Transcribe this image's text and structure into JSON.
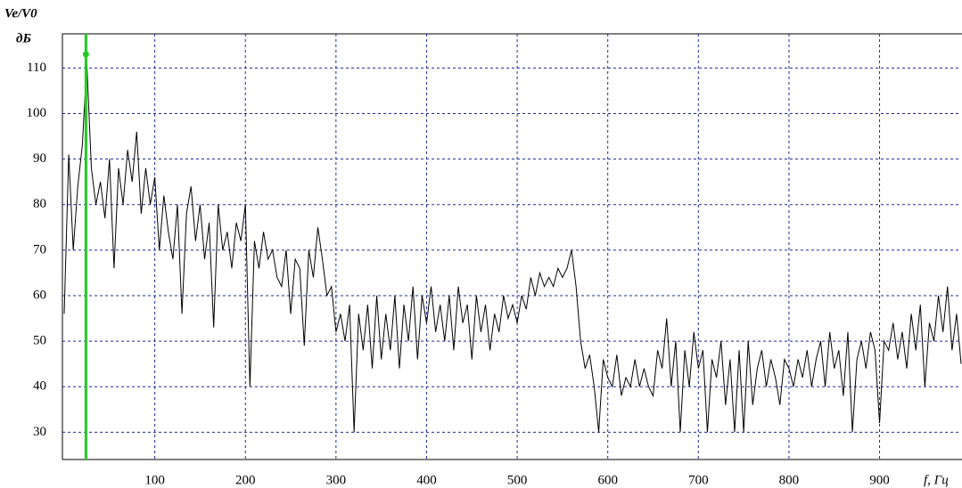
{
  "chart_data": {
    "type": "line",
    "y_label_top": "Ve/V0",
    "y_label_unit": "дБ",
    "x_label": "f, Гц",
    "xlim": [
      0,
      990
    ],
    "ylim": [
      24,
      117.5
    ],
    "xticks": [
      100,
      200,
      300,
      400,
      500,
      600,
      700,
      800,
      900
    ],
    "yticks": [
      30,
      40,
      50,
      60,
      70,
      80,
      90,
      100,
      110
    ],
    "grid": true,
    "marker": {
      "x": 24,
      "y": 113,
      "color": "#22cc22"
    },
    "x": [
      0,
      5,
      10,
      15,
      20,
      25,
      30,
      35,
      40,
      45,
      50,
      55,
      60,
      65,
      70,
      75,
      80,
      85,
      90,
      95,
      100,
      105,
      110,
      115,
      120,
      125,
      130,
      135,
      140,
      145,
      150,
      155,
      160,
      165,
      170,
      175,
      180,
      185,
      190,
      195,
      200,
      205,
      210,
      215,
      220,
      225,
      230,
      235,
      240,
      245,
      250,
      255,
      260,
      265,
      270,
      275,
      280,
      285,
      290,
      295,
      300,
      305,
      310,
      315,
      320,
      325,
      330,
      335,
      340,
      345,
      350,
      355,
      360,
      365,
      370,
      375,
      380,
      385,
      390,
      395,
      400,
      405,
      410,
      415,
      420,
      425,
      430,
      435,
      440,
      445,
      450,
      455,
      460,
      465,
      470,
      475,
      480,
      485,
      490,
      495,
      500,
      505,
      510,
      515,
      520,
      525,
      530,
      535,
      540,
      545,
      550,
      555,
      560,
      565,
      570,
      575,
      580,
      585,
      590,
      595,
      600,
      605,
      610,
      615,
      620,
      625,
      630,
      635,
      640,
      645,
      650,
      655,
      660,
      665,
      670,
      675,
      680,
      685,
      690,
      695,
      700,
      705,
      710,
      715,
      720,
      725,
      730,
      735,
      740,
      745,
      750,
      755,
      760,
      765,
      770,
      775,
      780,
      785,
      790,
      795,
      800,
      805,
      810,
      815,
      820,
      825,
      830,
      835,
      840,
      845,
      850,
      855,
      860,
      865,
      870,
      875,
      880,
      885,
      890,
      895,
      900,
      905,
      910,
      915,
      920,
      925,
      930,
      935,
      940,
      945,
      950,
      955,
      960,
      965,
      970,
      975,
      980,
      985,
      990
    ],
    "series": [
      {
        "color": "#000000",
        "values": [
          56,
          91,
          70,
          84,
          93,
          111,
          88,
          80,
          85,
          77,
          90,
          66,
          88,
          80,
          92,
          85,
          96,
          78,
          88,
          80,
          86,
          70,
          82,
          74,
          68,
          80,
          56,
          78,
          84,
          72,
          80,
          68,
          76,
          53,
          80,
          70,
          74,
          66,
          76,
          72,
          80,
          40,
          72,
          66,
          74,
          68,
          70,
          64,
          62,
          70,
          56,
          68,
          66,
          49,
          70,
          64,
          75,
          68,
          60,
          62,
          52,
          56,
          50,
          58,
          30,
          56,
          48,
          58,
          44,
          60,
          46,
          56,
          48,
          60,
          44,
          58,
          50,
          62,
          46,
          60,
          54,
          62,
          52,
          58,
          50,
          60,
          48,
          62,
          54,
          58,
          46,
          60,
          52,
          58,
          48,
          56,
          52,
          60,
          55,
          58,
          54,
          60,
          57,
          64,
          60,
          65,
          62,
          64,
          62,
          66,
          64,
          66,
          70,
          62,
          50,
          44,
          47,
          40,
          30,
          46,
          42,
          40,
          47,
          38,
          42,
          40,
          46,
          40,
          44,
          40,
          38,
          48,
          44,
          55,
          40,
          50,
          30,
          48,
          40,
          52,
          44,
          48,
          30,
          46,
          42,
          50,
          36,
          46,
          30,
          48,
          30,
          50,
          36,
          44,
          48,
          40,
          46,
          42,
          36,
          46,
          44,
          40,
          46,
          42,
          48,
          40,
          46,
          50,
          40,
          52,
          44,
          48,
          38,
          52,
          30,
          46,
          50,
          44,
          52,
          48,
          32,
          50,
          48,
          54,
          46,
          52,
          44,
          56,
          48,
          58,
          40,
          54,
          50,
          60,
          52,
          62,
          48,
          56,
          45
        ]
      }
    ]
  }
}
